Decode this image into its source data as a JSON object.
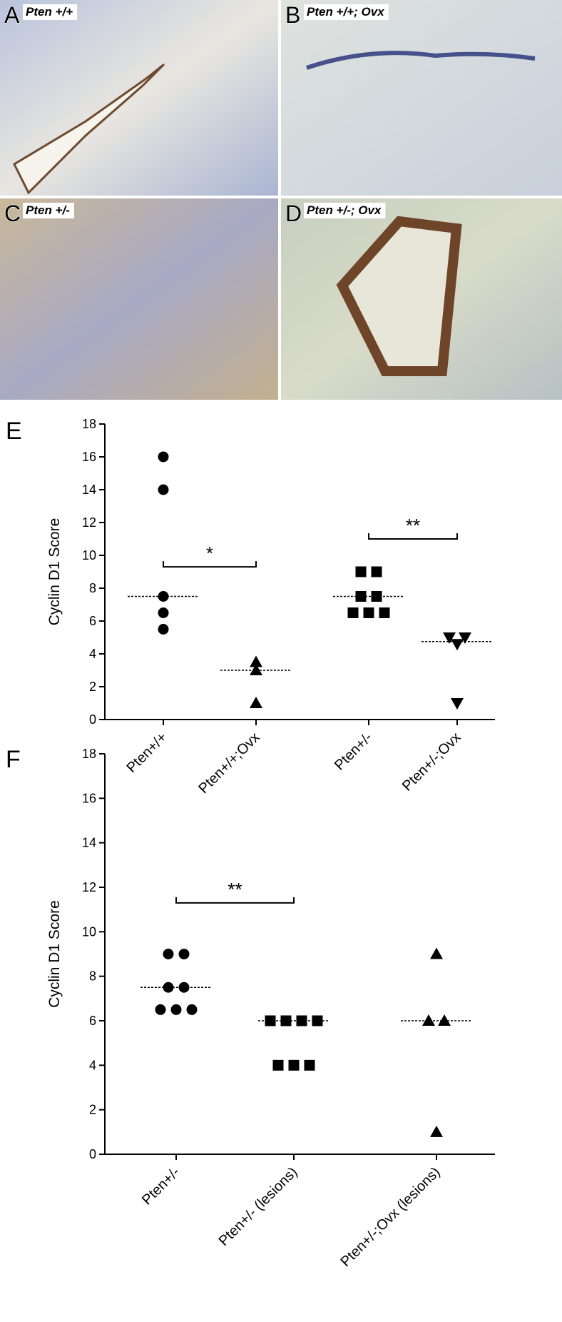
{
  "image_panels": [
    {
      "letter": "A",
      "caption": "Pten +/+"
    },
    {
      "letter": "B",
      "caption": "Pten +/+; Ovx"
    },
    {
      "letter": "C",
      "caption": "Pten +/-"
    },
    {
      "letter": "D",
      "caption": "Pten +/-; Ovx"
    }
  ],
  "chart_data": [
    {
      "type": "dot",
      "panel": "E",
      "ylabel": "Cyclin D1 Score",
      "categories": [
        "Pten+/+",
        "Pten+/+;Ovx",
        "Pten+/-",
        "Pten+/-;Ovx"
      ],
      "markers": [
        "circle",
        "triangle",
        "square",
        "triangle-down"
      ],
      "values": [
        [
          16,
          14,
          7.5,
          6.5,
          5.5
        ],
        [
          3.5,
          3,
          1
        ],
        [
          9,
          9,
          7.5,
          7.5,
          6.5,
          6.5,
          6.5
        ],
        [
          5,
          4.6,
          5,
          1
        ]
      ],
      "medians": [
        7.5,
        3,
        7.5,
        4.75
      ],
      "significance": [
        {
          "from": 0,
          "to": 1,
          "y": 9.3,
          "label": "*"
        },
        {
          "from": 2,
          "to": 3,
          "y": 11,
          "label": "**"
        }
      ],
      "ylim": [
        0,
        18
      ],
      "yticks": [
        0,
        2,
        4,
        6,
        8,
        10,
        12,
        14,
        16,
        18
      ],
      "color": "#000000"
    },
    {
      "type": "dot",
      "panel": "F",
      "ylabel": "Cyclin D1 Score",
      "categories": [
        "Pten+/-",
        "Pten+/- (lesions)",
        "Pten+/-;Ovx (lesions)"
      ],
      "markers": [
        "circle",
        "square",
        "triangle"
      ],
      "values": [
        [
          9,
          9,
          7.5,
          7.5,
          6.5,
          6.5,
          6.5
        ],
        [
          6,
          6,
          6,
          6,
          4,
          4,
          4
        ],
        [
          9,
          6,
          6,
          1
        ]
      ],
      "medians": [
        7.5,
        6,
        6
      ],
      "significance": [
        {
          "from": 0,
          "to": 1,
          "y": 11.3,
          "label": "**"
        }
      ],
      "ylim": [
        0,
        18
      ],
      "yticks": [
        0,
        2,
        4,
        6,
        8,
        10,
        12,
        14,
        16,
        18
      ],
      "color": "#000000"
    }
  ]
}
